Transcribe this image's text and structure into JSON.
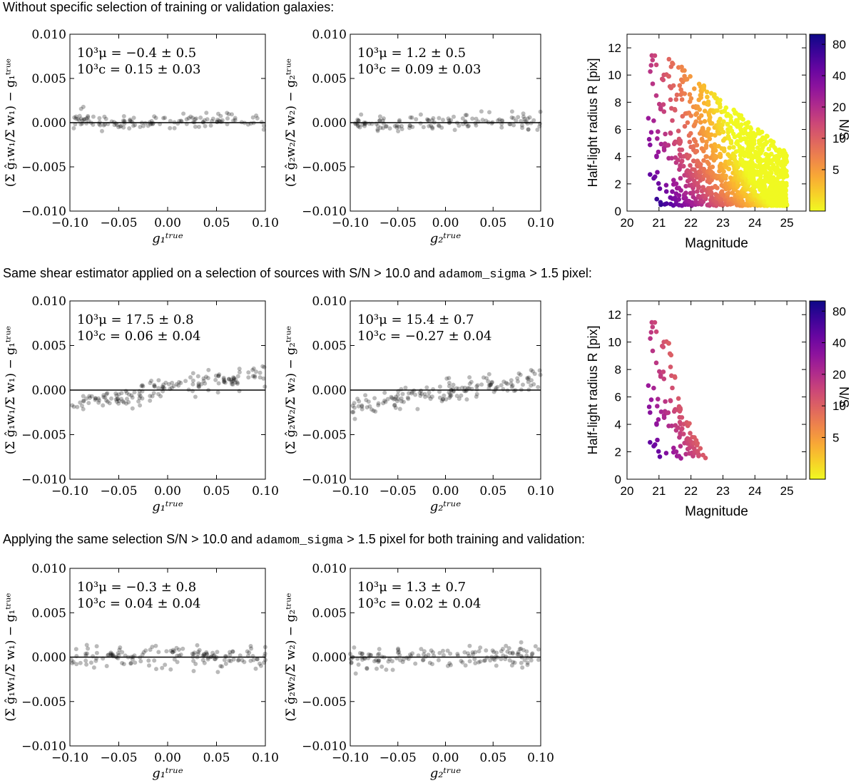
{
  "captions": {
    "row1": "Without specific selection of training or validation galaxies:",
    "row2_a": "Same shear estimator applied on a selection of sources with S/N",
    "row2_gt": ">",
    "row2_b": "10.0 and",
    "row2_code": "adamom_sigma",
    "row2_c": "1.5 pixel:",
    "row3_a": "Applying the same selection S/N",
    "row3_gt": ">",
    "row3_b": "10.0 and",
    "row3_code": "adamom_sigma",
    "row3_c": "1.5 pixel for both training and validation:"
  },
  "colors": {
    "points": "#000000",
    "cmap": [
      "#0d0887",
      "#5b02a3",
      "#9a179b",
      "#cb4678",
      "#eb7852",
      "#fbb32f",
      "#f0f921"
    ]
  },
  "chart_data": [
    {
      "id": "r1c1",
      "type": "scatter",
      "ylabel": "(Σ ĝ₁w₁/Σ w₁) − g₁ᵗʳᵘᵉ",
      "xlabel": "g₁ᵗʳᵘᵉ",
      "xlim": [
        -0.1,
        0.1
      ],
      "ylim": [
        -0.01,
        0.01
      ],
      "xticks": [
        "−0.10",
        "−0.05",
        "0.00",
        "0.05",
        "0.10"
      ],
      "yticks": [
        "−0.010",
        "−0.005",
        "0.000",
        "0.005",
        "0.010"
      ],
      "annotation_mu": "10³μ = −0.4 ± 0.5",
      "annotation_c": "10³c = 0.15 ± 0.03",
      "slope": -0.0004,
      "intercept": 0.00015,
      "scatter_sd": 0.00045,
      "n_points": 130,
      "seed": 11
    },
    {
      "id": "r1c2",
      "type": "scatter",
      "ylabel": "(Σ ĝ₂w₂/Σ w₂) − g₂ᵗʳᵘᵉ",
      "xlabel": "g₂ᵗʳᵘᵉ",
      "xlim": [
        -0.1,
        0.1
      ],
      "ylim": [
        -0.01,
        0.01
      ],
      "xticks": [
        "−0.10",
        "−0.05",
        "0.00",
        "0.05",
        "0.10"
      ],
      "yticks": [
        "−0.010",
        "−0.005",
        "0.000",
        "0.005",
        "0.010"
      ],
      "annotation_mu": "10³μ = 1.2 ± 0.5",
      "annotation_c": "10³c = 0.09 ± 0.03",
      "slope": 0.0012,
      "intercept": 9e-05,
      "scatter_sd": 0.00045,
      "n_points": 130,
      "seed": 23
    },
    {
      "id": "r1c3",
      "type": "scatter",
      "xlabel": "Magnitude",
      "ylabel": "Half-light radius R [pix]",
      "xlim": [
        20,
        25.6
      ],
      "ylim": [
        0,
        13
      ],
      "xticks": [
        "20",
        "21",
        "22",
        "23",
        "24",
        "25"
      ],
      "yticks": [
        "0",
        "2",
        "4",
        "6",
        "8",
        "10",
        "12"
      ],
      "colorbar_label": "S/N",
      "colorbar_ticks": [
        "80",
        "40",
        "20",
        "10",
        "5"
      ],
      "colorbar_range": [
        2,
        100
      ],
      "selection": false,
      "n_points": 1300,
      "seed": 5
    },
    {
      "id": "r2c1",
      "type": "scatter",
      "ylabel": "(Σ ĝ₁w₁/Σ w₁) − g₁ᵗʳᵘᵉ",
      "xlabel": "g₁ᵗʳᵘᵉ",
      "xlim": [
        -0.1,
        0.1
      ],
      "ylim": [
        -0.01,
        0.01
      ],
      "xticks": [
        "−0.10",
        "−0.05",
        "0.00",
        "0.05",
        "0.10"
      ],
      "yticks": [
        "−0.010",
        "−0.005",
        "0.000",
        "0.005",
        "0.010"
      ],
      "annotation_mu": "10³μ = 17.5 ± 0.8",
      "annotation_c": "10³c = 0.06 ± 0.04",
      "slope": 0.0175,
      "intercept": 6e-05,
      "scatter_sd": 0.0006,
      "n_points": 160,
      "seed": 37
    },
    {
      "id": "r2c2",
      "type": "scatter",
      "ylabel": "(Σ ĝ₂w₂/Σ w₂) − g₂ᵗʳᵘᵉ",
      "xlabel": "g₂ᵗʳᵘᵉ",
      "xlim": [
        -0.1,
        0.1
      ],
      "ylim": [
        -0.01,
        0.01
      ],
      "xticks": [
        "−0.10",
        "−0.05",
        "0.00",
        "0.05",
        "0.10"
      ],
      "yticks": [
        "−0.010",
        "−0.005",
        "0.000",
        "0.005",
        "0.010"
      ],
      "annotation_mu": "10³μ = 15.4 ± 0.7",
      "annotation_c": "10³c = −0.27 ± 0.04",
      "slope": 0.0154,
      "intercept": -0.00027,
      "scatter_sd": 0.0006,
      "n_points": 160,
      "seed": 41
    },
    {
      "id": "r2c3",
      "type": "scatter",
      "xlabel": "Magnitude",
      "ylabel": "Half-light radius R [pix]",
      "xlim": [
        20,
        25.6
      ],
      "ylim": [
        0,
        13
      ],
      "xticks": [
        "20",
        "21",
        "22",
        "23",
        "24",
        "25"
      ],
      "yticks": [
        "0",
        "2",
        "4",
        "6",
        "8",
        "10",
        "12"
      ],
      "colorbar_label": "S/N",
      "colorbar_ticks": [
        "80",
        "40",
        "20",
        "10",
        "5"
      ],
      "colorbar_range": [
        2,
        100
      ],
      "selection": true,
      "n_points": 1300,
      "seed": 5
    },
    {
      "id": "r3c1",
      "type": "scatter",
      "ylabel": "(Σ ĝ₁w₁/Σ w₁) − g₁ᵗʳᵘᵉ",
      "xlabel": "g₁ᵗʳᵘᵉ",
      "xlim": [
        -0.1,
        0.1
      ],
      "ylim": [
        -0.01,
        0.01
      ],
      "xticks": [
        "−0.10",
        "−0.05",
        "0.00",
        "0.05",
        "0.10"
      ],
      "yticks": [
        "−0.010",
        "−0.005",
        "0.000",
        "0.005",
        "0.010"
      ],
      "annotation_mu": "10³μ = −0.3 ± 0.8",
      "annotation_c": "10³c = 0.04 ± 0.04",
      "slope": -0.0003,
      "intercept": 4e-05,
      "scatter_sd": 0.0006,
      "n_points": 150,
      "seed": 53
    },
    {
      "id": "r3c2",
      "type": "scatter",
      "ylabel": "(Σ ĝ₂w₂/Σ w₂) − g₂ᵗʳᵘᵉ",
      "xlabel": "g₂ᵗʳᵘᵉ",
      "xlim": [
        -0.1,
        0.1
      ],
      "ylim": [
        -0.01,
        0.01
      ],
      "xticks": [
        "−0.10",
        "−0.05",
        "0.00",
        "0.05",
        "0.10"
      ],
      "yticks": [
        "−0.010",
        "−0.005",
        "0.000",
        "0.005",
        "0.010"
      ],
      "annotation_mu": "10³μ = 1.3 ± 0.7",
      "annotation_c": "10³c = 0.02 ± 0.04",
      "slope": 0.0013,
      "intercept": 2e-05,
      "scatter_sd": 0.0006,
      "n_points": 150,
      "seed": 67
    }
  ]
}
